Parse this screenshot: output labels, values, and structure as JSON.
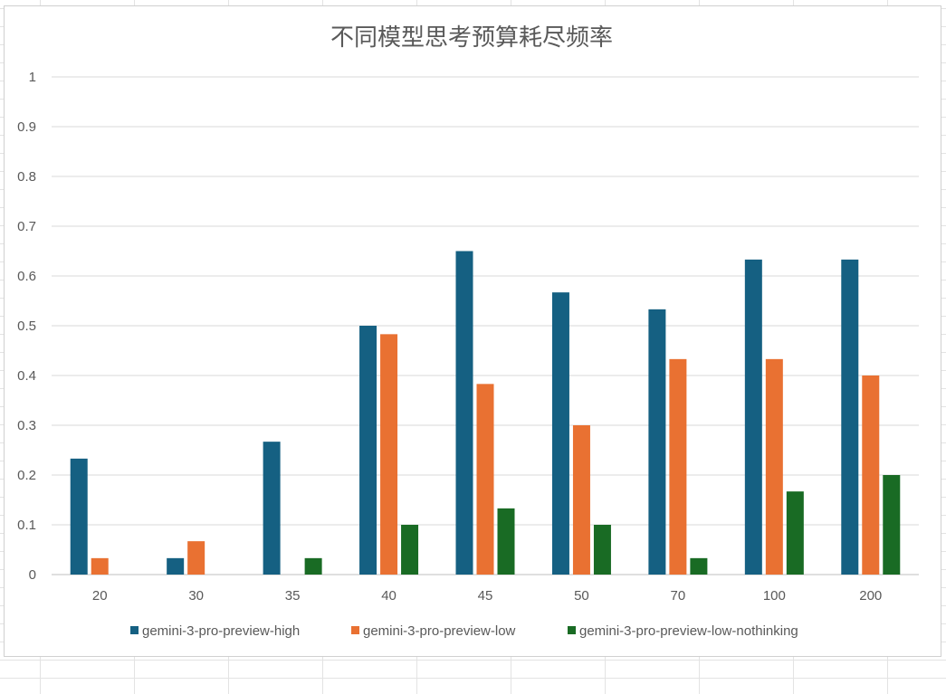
{
  "chart_data": {
    "type": "bar",
    "title": "不同模型思考预算耗尽频率",
    "categories": [
      "20",
      "30",
      "35",
      "40",
      "45",
      "50",
      "70",
      "100",
      "200"
    ],
    "series": [
      {
        "name": "gemini-3-pro-preview-high",
        "color": "#156082",
        "values": [
          0.233,
          0.033,
          0.267,
          0.5,
          0.65,
          0.567,
          0.533,
          0.633,
          0.633
        ]
      },
      {
        "name": "gemini-3-pro-preview-low",
        "color": "#e97132",
        "values": [
          0.033,
          0.067,
          0,
          0.483,
          0.383,
          0.3,
          0.433,
          0.433,
          0.4
        ]
      },
      {
        "name": "gemini-3-pro-preview-low-nothinking",
        "color": "#196b24",
        "values": [
          0,
          0,
          0.033,
          0.1,
          0.133,
          0.1,
          0.033,
          0.167,
          0.2
        ]
      }
    ],
    "yticks": [
      "0",
      "0.1",
      "0.2",
      "0.3",
      "0.4",
      "0.5",
      "0.6",
      "0.7",
      "0.8",
      "0.9",
      "1"
    ],
    "ylim": [
      0,
      1
    ],
    "grid": true,
    "legend": "bottom"
  }
}
